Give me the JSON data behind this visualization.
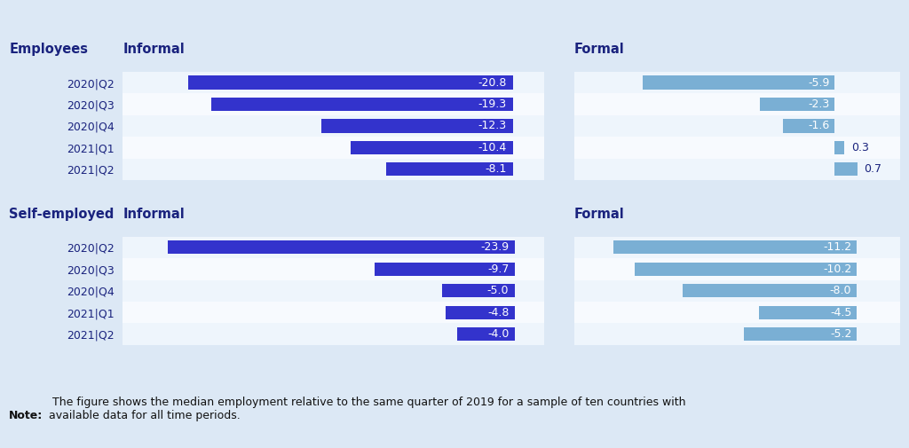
{
  "background_color": "#dce8f5",
  "row_bg_light": "#eaf2fb",
  "row_bg_white": "#f5f9fd",
  "quarters": [
    "2020|Q2",
    "2020|Q3",
    "2020|Q4",
    "2021|Q1",
    "2021|Q2"
  ],
  "employees_informal": [
    -20.8,
    -19.3,
    -12.3,
    -10.4,
    -8.1
  ],
  "employees_formal": [
    -5.9,
    -2.3,
    -1.6,
    0.3,
    0.7
  ],
  "selfemployed_informal": [
    -23.9,
    -9.7,
    -5.0,
    -4.8,
    -4.0
  ],
  "selfemployed_formal": [
    -11.2,
    -10.2,
    -8.0,
    -4.5,
    -5.2
  ],
  "informal_color": "#3333cc",
  "formal_color": "#7aafd4",
  "text_color": "#1a237e",
  "note_bold": "Note:",
  "note_regular": " The figure shows the median employment relative to the same quarter of 2019 for a sample of ten countries with\navailable data for all time periods.",
  "employees_label": "Employees",
  "selfemployed_label": "Self-employed",
  "informal_label": "Informal",
  "formal_label": "Formal",
  "ei_xlim": [
    -25,
    2
  ],
  "ef_xlim": [
    -8,
    2
  ],
  "si_xlim": [
    -27,
    2
  ],
  "sf_xlim": [
    -13,
    2
  ]
}
